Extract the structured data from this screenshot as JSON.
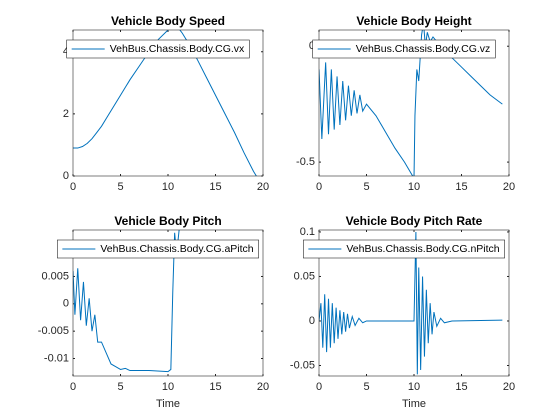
{
  "chart_data": [
    {
      "type": "line",
      "title": "Vehicle Body Speed",
      "xlim": [
        0,
        20
      ],
      "xticks": [
        0,
        5,
        10,
        15,
        20
      ],
      "ylim": [
        0,
        4.7
      ],
      "yticks": [
        0,
        2,
        4
      ],
      "legend": "north",
      "x": [
        0,
        0.5,
        1,
        1.5,
        2,
        2.5,
        3,
        3.5,
        4,
        5,
        6,
        7,
        8,
        9,
        10,
        10.5,
        11,
        11.5,
        12,
        13,
        14,
        15,
        16,
        17,
        18,
        19,
        19.3
      ],
      "series": [
        {
          "name": "VehBus.Chassis.Body.CG.vx",
          "color": "#0072bd",
          "values": [
            0.9,
            0.9,
            0.95,
            1.05,
            1.2,
            1.4,
            1.6,
            1.85,
            2.1,
            2.6,
            3.1,
            3.55,
            4.0,
            4.4,
            4.7,
            4.8,
            4.8,
            4.6,
            4.35,
            3.8,
            3.2,
            2.6,
            2.0,
            1.4,
            0.75,
            0.15,
            0
          ]
        }
      ]
    },
    {
      "type": "line",
      "title": "Vehicle Body Height",
      "xlim": [
        0,
        20
      ],
      "xticks": [
        0,
        5,
        10,
        15,
        20
      ],
      "ylim": [
        -0.56,
        0.07
      ],
      "yticks": [
        -0.5,
        0
      ],
      "legend": "north",
      "x": [
        0,
        0.3,
        0.7,
        1.0,
        1.3,
        1.6,
        1.9,
        2.2,
        2.5,
        2.8,
        3.1,
        3.4,
        3.7,
        4.0,
        4.3,
        4.6,
        5,
        6,
        7,
        8,
        9,
        10,
        10.1,
        10.3,
        10.5,
        10.8,
        11,
        11.2,
        11.4,
        11.7,
        12,
        13,
        14,
        15,
        16,
        17,
        18,
        19.3
      ],
      "series": [
        {
          "name": "VehBus.Chassis.Body.CG.vz",
          "color": "#0072bd",
          "values": [
            -0.1,
            -0.4,
            -0.07,
            -0.38,
            -0.1,
            -0.36,
            -0.13,
            -0.34,
            -0.15,
            -0.32,
            -0.17,
            -0.3,
            -0.19,
            -0.29,
            -0.21,
            -0.28,
            -0.25,
            -0.3,
            -0.37,
            -0.44,
            -0.5,
            -0.57,
            -0.3,
            -0.1,
            -0.15,
            0.05,
            0.1,
            0.0,
            0.06,
            0.02,
            0.04,
            -0.01,
            -0.05,
            -0.09,
            -0.13,
            -0.17,
            -0.21,
            -0.25
          ]
        }
      ]
    },
    {
      "type": "line",
      "title": "Vehicle Body Pitch",
      "xlabel": "Time",
      "xlim": [
        0,
        20
      ],
      "xticks": [
        0,
        5,
        10,
        15,
        20
      ],
      "ylim": [
        -0.0132,
        0.0135
      ],
      "yticks": [
        -0.01,
        -0.005,
        0,
        0.005
      ],
      "legend": "north",
      "x": [
        0,
        0.2,
        0.5,
        0.8,
        1.1,
        1.4,
        1.7,
        2,
        2.3,
        2.6,
        3,
        3.5,
        4,
        4.5,
        5,
        5.5,
        6,
        8,
        10,
        10.3,
        10.5,
        10.7,
        10.9,
        11.2,
        11.5,
        12
      ],
      "series": [
        {
          "name": "VehBus.Chassis.Body.CG.aPitch",
          "color": "#0072bd",
          "values": [
            0.006,
            -0.002,
            0.0065,
            -0.003,
            0.004,
            -0.004,
            0.001,
            -0.005,
            -0.002,
            -0.007,
            -0.007,
            -0.009,
            -0.011,
            -0.0115,
            -0.012,
            -0.0118,
            -0.0122,
            -0.0122,
            -0.0124,
            -0.012,
            0.002,
            0.013,
            0.009,
            0.014,
            0.016,
            0.02
          ]
        }
      ]
    },
    {
      "type": "line",
      "title": "Vehicle Body Pitch Rate",
      "xlabel": "Time",
      "xlim": [
        0,
        20
      ],
      "xticks": [
        0,
        5,
        10,
        15,
        20
      ],
      "ylim": [
        -0.0618,
        0.1022
      ],
      "yticks": [
        -0.05,
        0,
        0.05,
        0.1
      ],
      "legend": "north",
      "x": [
        0,
        0.2,
        0.4,
        0.6,
        0.8,
        1.0,
        1.2,
        1.4,
        1.6,
        1.8,
        2.0,
        2.2,
        2.4,
        2.6,
        2.8,
        3.0,
        3.2,
        3.5,
        3.8,
        4.2,
        4.6,
        5,
        10,
        10.2,
        10.35,
        10.5,
        10.7,
        10.9,
        11.1,
        11.3,
        11.5,
        11.7,
        11.9,
        12.1,
        12.4,
        12.8,
        13.2,
        14,
        19.3
      ],
      "series": [
        {
          "name": "VehBus.Chassis.Body.CG.nPitch",
          "color": "#0072bd",
          "values": [
            0,
            0.02,
            -0.03,
            0.03,
            -0.035,
            0.025,
            -0.03,
            0.02,
            -0.025,
            0.015,
            -0.02,
            0.012,
            -0.015,
            0.01,
            -0.012,
            0.008,
            -0.008,
            0.005,
            -0.005,
            0.003,
            -0.002,
            0,
            0,
            0.1,
            -0.06,
            0.06,
            -0.055,
            0.05,
            -0.04,
            0.035,
            -0.025,
            0.02,
            -0.015,
            0.01,
            -0.006,
            0.003,
            -0.002,
            0,
            0.001
          ]
        }
      ]
    }
  ]
}
